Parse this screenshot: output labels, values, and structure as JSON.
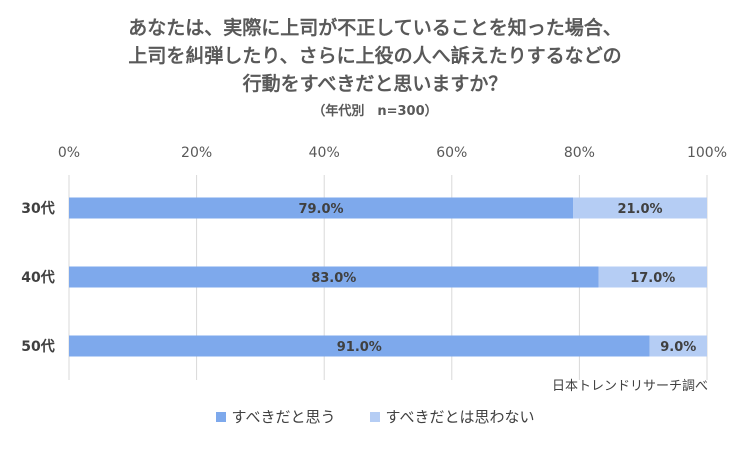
{
  "chart_data": {
    "type": "bar",
    "orientation": "horizontal",
    "stacked": true,
    "title_lines": [
      "あなたは、実際に上司が不正していることを知った場合、",
      "上司を糾弾したり、さらに上役の人へ訴えたりするなどの",
      "行動をすべきだと思いますか？"
    ],
    "subtitle": "（年代別　n=300）",
    "categories": [
      "30代",
      "40代",
      "50代"
    ],
    "series": [
      {
        "name": "すべきだと思う",
        "values": [
          79.0,
          83.0,
          91.0
        ],
        "color": "#7ea9ec"
      },
      {
        "name": "すべきだとは思わない",
        "values": [
          21.0,
          17.0,
          9.0
        ],
        "color": "#b5cdf4"
      }
    ],
    "data_labels": [
      [
        "79.0%",
        "83.0%",
        "91.0%"
      ],
      [
        "21.0%",
        "17.0%",
        "9.0%"
      ]
    ],
    "x_ticks": [
      "0%",
      "20%",
      "40%",
      "60%",
      "80%",
      "100%"
    ],
    "xlim": [
      0,
      100
    ],
    "grid": true,
    "legend_position": "bottom",
    "source_note": "日本トレンドリサーチ調べ"
  }
}
